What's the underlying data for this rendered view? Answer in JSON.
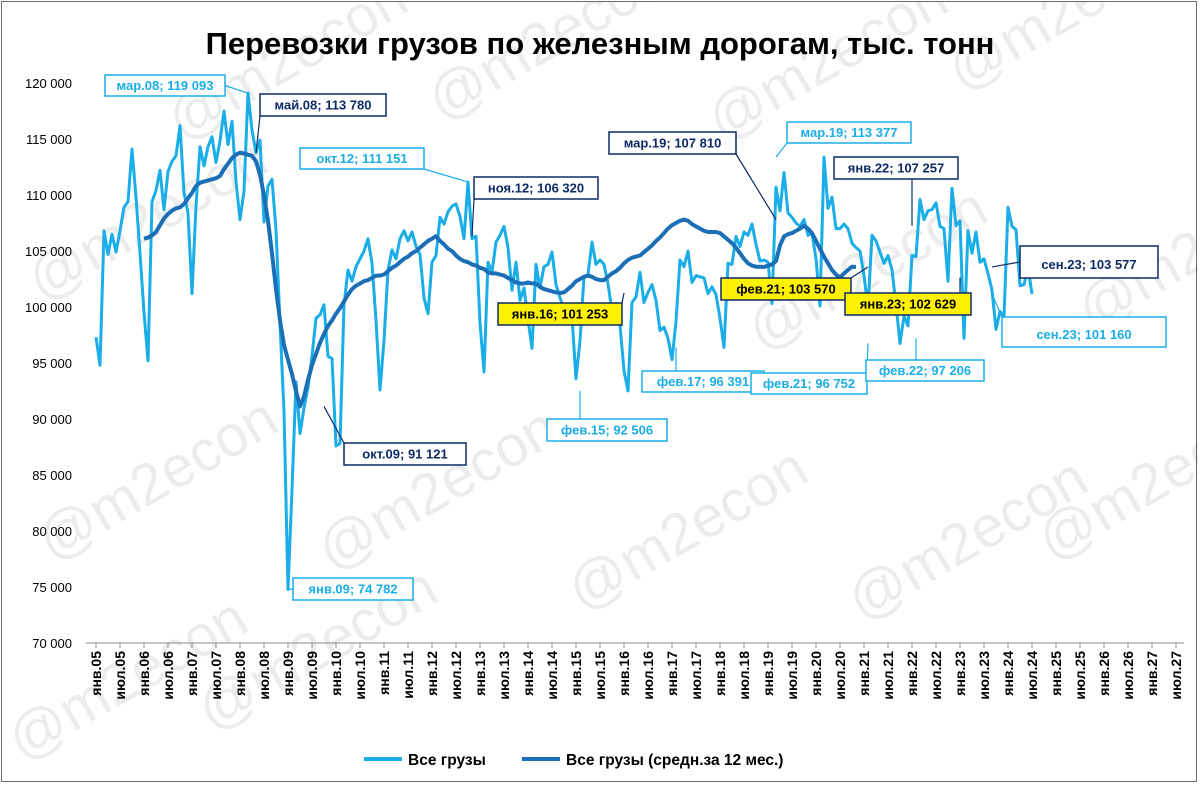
{
  "chart_data": {
    "type": "line",
    "title": "Перевозки грузов по железным дорогам, тыс. тонн",
    "xlabel": "",
    "ylabel": "",
    "ylim": [
      70000,
      120000
    ],
    "y_ticks": [
      "70 000",
      "75 000",
      "80 000",
      "85 000",
      "90 000",
      "95 000",
      "100 000",
      "105 000",
      "110 000",
      "115 000",
      "120 000"
    ],
    "x_ticks": [
      "янв.05",
      "июл.05",
      "янв.06",
      "июл.06",
      "янв.07",
      "июл.07",
      "янв.08",
      "июл.08",
      "янв.09",
      "июл.09",
      "янв.10",
      "июл.10",
      "янв.11",
      "июл.11",
      "янв.12",
      "июл.12",
      "янв.13",
      "июл.13",
      "янв.14",
      "июл.14",
      "янв.15",
      "июл.15",
      "янв.16",
      "июл.16",
      "янв.17",
      "июл.17",
      "янв.18",
      "июл.18",
      "янв.19",
      "июл.19",
      "янв.20",
      "июл.20",
      "янв.21",
      "июл.21",
      "янв.22",
      "июл.22",
      "янв.23",
      "июл.23",
      "янв.24",
      "июл.24",
      "янв.25",
      "июл.25",
      "янв.26",
      "июл.26",
      "янв.27",
      "июл.27"
    ],
    "grid": false,
    "legend_position": "bottom",
    "watermark": "@m2econ",
    "colors": {
      "monthly": "#1AADE8",
      "average": "#1B6FB6",
      "dark_box": "#0D2A66",
      "yellow_box": "#FFF200"
    },
    "series": [
      {
        "name": "Все грузы",
        "start": "янв.05",
        "values": [
          97300,
          94800,
          106800,
          104700,
          106500,
          104900,
          106800,
          108900,
          109400,
          114100,
          109800,
          104800,
          99500,
          95200,
          109400,
          110400,
          112200,
          108700,
          112100,
          113000,
          113500,
          116200,
          110200,
          108400,
          101200,
          109000,
          114300,
          112600,
          114300,
          115200,
          112900,
          114800,
          117500,
          114500,
          116600,
          111200,
          107800,
          110300,
          119093,
          115800,
          113780,
          114900,
          107600,
          110800,
          111400,
          106900,
          98500,
          90700,
          74782,
          83700,
          93300,
          88700,
          91000,
          92800,
          95600,
          99000,
          99300,
          100200,
          95600,
          95400,
          87600,
          87800,
          100200,
          103300,
          102300,
          103600,
          104300,
          105000,
          106100,
          103900,
          98800,
          92600,
          97000,
          103300,
          105100,
          104300,
          106100,
          106800,
          105900,
          106700,
          105400,
          104700,
          100800,
          99400,
          104000,
          104600,
          108000,
          107400,
          108500,
          109000,
          109200,
          108100,
          106100,
          111151,
          106100,
          106320,
          98600,
          94200,
          104000,
          103100,
          105800,
          106400,
          107200,
          105300,
          101500,
          104000,
          100600,
          101700,
          98900,
          96300,
          103800,
          101700,
          103600,
          103800,
          104900,
          102000,
          100800,
          99900,
          100100,
          99100,
          93600,
          97000,
          102700,
          102900,
          105800,
          103800,
          104200,
          103800,
          102100,
          99600,
          100300,
          98400,
          94300,
          92506,
          100400,
          100900,
          103100,
          100400,
          101300,
          102000,
          100600,
          97900,
          98200,
          97200,
          95300,
          98700,
          104200,
          103600,
          105000,
          102200,
          102800,
          102700,
          102600,
          101200,
          101800,
          101100,
          99000,
          96391,
          103900,
          103800,
          106300,
          105400,
          106700,
          106400,
          107400,
          105600,
          104100,
          104200,
          104000,
          100300,
          110700,
          108600,
          112000,
          108400,
          108000,
          107500,
          107200,
          107810,
          106400,
          106600,
          104300,
          100100,
          113377,
          108800,
          109800,
          107000,
          107000,
          107400,
          107000,
          105700,
          105300,
          105000,
          102800,
          99900,
          106400,
          105900,
          104900,
          103900,
          104600,
          103300,
          100200,
          96752,
          99200,
          98300,
          104600,
          104500,
          109600,
          107800,
          108600,
          108700,
          109300,
          107200,
          107000,
          102300,
          110600,
          107257,
          107700,
          97206,
          106800,
          104800,
          106700,
          104000,
          104300,
          103000,
          101500,
          98000,
          99600,
          99100,
          108900,
          107200,
          106900,
          101900,
          102000,
          103500,
          101160,
          null,
          null,
          null,
          null,
          null,
          null,
          null,
          null,
          null,
          null,
          null,
          null,
          null,
          null,
          null,
          null,
          null,
          null,
          null,
          null,
          null,
          null,
          null,
          null,
          null,
          null,
          null,
          null,
          null,
          null,
          null,
          null,
          null,
          null,
          null,
          null,
          null,
          null,
          null,
          null,
          null,
          null,
          null,
          null,
          null,
          null,
          null,
          null,
          null,
          null
        ]
      },
      {
        "name": "Все грузы (средн.за 12 мес.)",
        "start": "янв.06",
        "values": [
          106100,
          106200,
          106400,
          106700,
          107300,
          107900,
          108300,
          108600,
          108800,
          108900,
          109200,
          109700,
          110200,
          110800,
          111100,
          111200,
          111300,
          111400,
          111500,
          111700,
          112300,
          112800,
          113300,
          113600,
          113780,
          113700,
          113600,
          113500,
          113000,
          111800,
          110000,
          107700,
          104800,
          101600,
          98800,
          96600,
          95300,
          94000,
          92500,
          91121,
          92000,
          93500,
          94800,
          95800,
          96800,
          97600,
          98300,
          98800,
          99400,
          99900,
          100500,
          101100,
          101600,
          101900,
          102100,
          102300,
          102400,
          102600,
          102800,
          102800,
          102900,
          103200,
          103500,
          103700,
          104000,
          104300,
          104500,
          104800,
          105000,
          105300,
          105600,
          105900,
          106100,
          106320,
          105900,
          105600,
          105200,
          105000,
          104600,
          104300,
          104100,
          104000,
          103800,
          103700,
          103500,
          103400,
          103100,
          103000,
          103000,
          102900,
          102800,
          102600,
          102400,
          102200,
          102100,
          102100,
          102200,
          102100,
          102100,
          101800,
          101600,
          101500,
          101400,
          101300,
          101253,
          101300,
          101600,
          101900,
          102300,
          102500,
          102700,
          102800,
          102700,
          102500,
          102400,
          102400,
          102700,
          103000,
          103200,
          103500,
          103900,
          104200,
          104400,
          104500,
          104600,
          104900,
          105200,
          105500,
          105900,
          106200,
          106600,
          107000,
          107300,
          107500,
          107700,
          107810,
          107700,
          107400,
          107200,
          107000,
          106800,
          106700,
          106700,
          106700,
          106600,
          106300,
          106000,
          105700,
          105300,
          104800,
          104300,
          103900,
          103700,
          103600,
          103600,
          103570,
          103700,
          103800,
          104100,
          105500,
          106300,
          106500,
          106600,
          106800,
          107000,
          107257,
          107000,
          106600,
          105900,
          105200,
          104500,
          103900,
          103300,
          102900,
          102629,
          103000,
          103300,
          103600,
          103577
        ]
      }
    ],
    "annotations": [
      {
        "label": "мар.08; 119 093",
        "style": "light"
      },
      {
        "label": "май.08;  113 780",
        "style": "dark"
      },
      {
        "label": "окт.12; 111 151",
        "style": "light"
      },
      {
        "label": "ноя.12;  106 320",
        "style": "dark"
      },
      {
        "label": "мар.19;  107 810",
        "style": "dark"
      },
      {
        "label": "мар.19; 113 377",
        "style": "light"
      },
      {
        "label": "янв.22;  107 257",
        "style": "dark"
      },
      {
        "label": "сен.23;  103 577",
        "style": "dark-big"
      },
      {
        "label": "фев.21;  103 570",
        "style": "yellow"
      },
      {
        "label": "янв.16;  101 253",
        "style": "yellow"
      },
      {
        "label": "янв.23;  102 629",
        "style": "yellow"
      },
      {
        "label": "сен.23; 101 160",
        "style": "light-big"
      },
      {
        "label": "фев.17; 96 391",
        "style": "light"
      },
      {
        "label": "фев.21; 96 752",
        "style": "light"
      },
      {
        "label": "фев.22; 97 206",
        "style": "light"
      },
      {
        "label": "фев.15; 92 506",
        "style": "light"
      },
      {
        "label": "окт.09;  91 121",
        "style": "dark"
      },
      {
        "label": "янв.09; 74 782",
        "style": "light"
      }
    ]
  }
}
